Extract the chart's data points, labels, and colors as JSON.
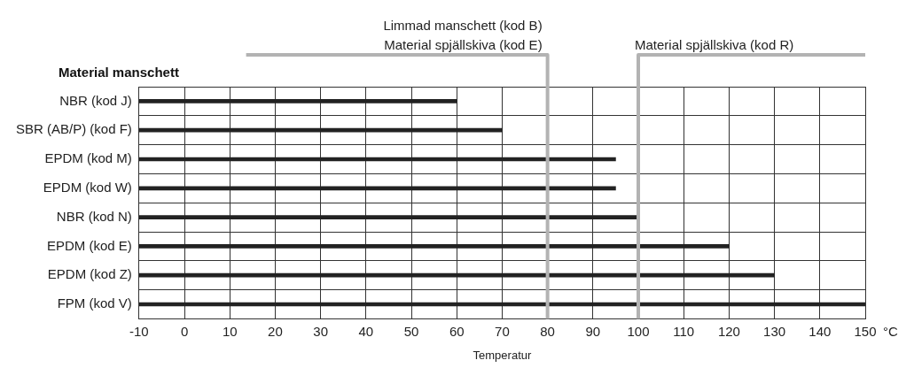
{
  "chart_data": {
    "type": "bar",
    "orientation": "horizontal",
    "ylabel": "Material manschett",
    "xlabel": "Temperatur",
    "categories": [
      "NBR (kod J)",
      "SBR (AB/P) (kod F)",
      "EPDM (kod M)",
      "EPDM (kod W)",
      "NBR (kod N)",
      "EPDM (kod E)",
      "EPDM (kod Z)",
      "FPM (kod V)"
    ],
    "base": [
      -10,
      -10,
      -10,
      -10,
      -10,
      -10,
      -10,
      -10
    ],
    "values": [
      70,
      80,
      105,
      105,
      110,
      130,
      140,
      160
    ],
    "color": "#222222",
    "xlim": [
      -10,
      150
    ],
    "xticks": [
      -10,
      0,
      10,
      20,
      30,
      40,
      50,
      60,
      70,
      80,
      90,
      100,
      110,
      120,
      130,
      140,
      150
    ],
    "grid": true,
    "ref_lines": [
      {
        "axis": "x",
        "value": 80,
        "label": "Limmad manschett (kod B)\nMaterial spjällskiva (kod E)",
        "color": "#b3b3b3"
      },
      {
        "axis": "x",
        "value": 100,
        "label": "Material spjällskiva (kod R)",
        "color": "#b3b3b3"
      }
    ],
    "annotations": [
      "°C"
    ]
  }
}
